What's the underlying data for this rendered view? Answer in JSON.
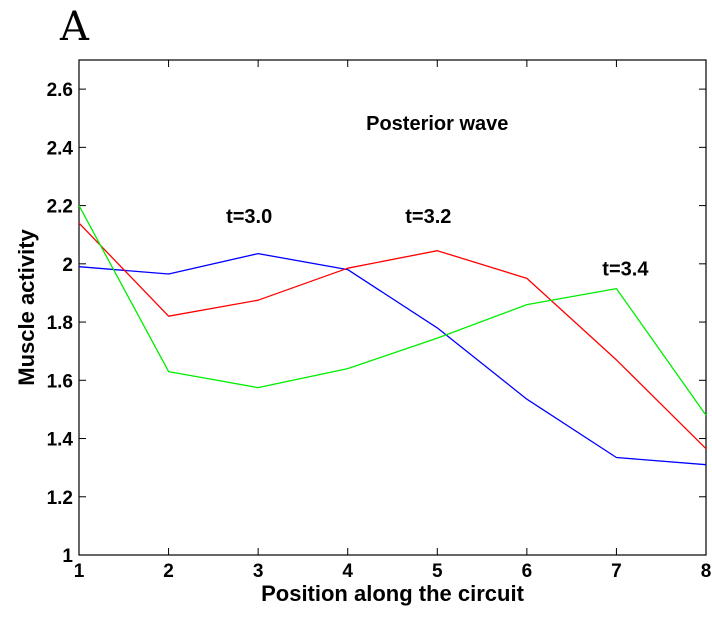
{
  "panel_label": "A",
  "chart_data": {
    "type": "line",
    "title": "",
    "xlabel": "Position along the circuit",
    "ylabel": "Muscle activity",
    "xlim": [
      1,
      8
    ],
    "ylim": [
      1,
      2.7
    ],
    "xticks": [
      1,
      2,
      3,
      4,
      5,
      6,
      7,
      8
    ],
    "yticks": [
      1,
      1.2,
      1.4,
      1.6,
      1.8,
      2,
      2.2,
      2.4,
      2.6
    ],
    "x": [
      1,
      2,
      3,
      4,
      5,
      6,
      7,
      8
    ],
    "series": [
      {
        "color": "#0000ff",
        "values": [
          1.99,
          1.965,
          2.035,
          1.98,
          1.78,
          1.535,
          1.335,
          1.31
        ]
      },
      {
        "color": "#ff0000",
        "values": [
          2.14,
          1.82,
          1.875,
          1.985,
          2.045,
          1.95,
          1.67,
          1.365
        ]
      },
      {
        "color": "#00ee00",
        "values": [
          2.2,
          1.63,
          1.575,
          1.64,
          1.745,
          1.86,
          1.915,
          1.48
        ]
      }
    ],
    "annotations": [
      {
        "text": "Posterior wave",
        "x": 5.0,
        "y": 2.46
      },
      {
        "text": "t=3.0",
        "x": 2.9,
        "y": 2.14
      },
      {
        "text": "t=3.2",
        "x": 4.9,
        "y": 2.14
      },
      {
        "text": "t=3.4",
        "x": 7.1,
        "y": 1.96
      }
    ],
    "grid": false,
    "box": true
  }
}
